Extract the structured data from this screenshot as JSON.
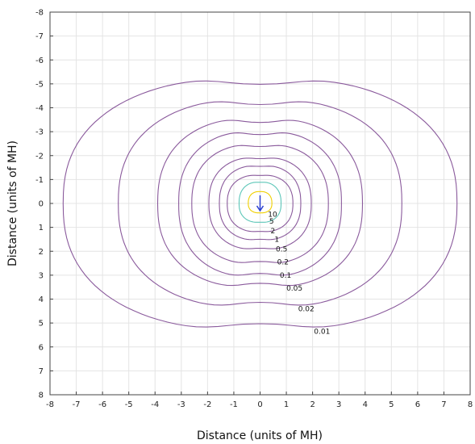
{
  "chart_data": {
    "type": "contour",
    "title": "",
    "xlabel": "Distance (units of MH)",
    "ylabel": "Distance (units of MH)",
    "xlim": [
      -8,
      8
    ],
    "ylim": [
      -8,
      8
    ],
    "y_inverted": true,
    "grid": true,
    "x_ticks": [
      "-8",
      "-7",
      "-6",
      "-5",
      "-4",
      "-3",
      "-2",
      "-1",
      "0",
      "1",
      "2",
      "3",
      "4",
      "5",
      "6",
      "7",
      "8"
    ],
    "y_ticks": [
      "-8",
      "-7",
      "-6",
      "-5",
      "-4",
      "-3",
      "-2",
      "-1",
      "0",
      "1",
      "2",
      "3",
      "4",
      "5",
      "6",
      "7",
      "8"
    ],
    "luminaire": {
      "x": 0,
      "y": 0,
      "arrow_color": "#2a3fd0",
      "arrow_direction": "down"
    },
    "contours": [
      {
        "label": "10",
        "color": "#f0d000",
        "x_left": -0.45,
        "x_right": 0.45,
        "y_top": -0.5,
        "y_bottom": 0.4,
        "label_x": 0.3,
        "label_y": 0.45
      },
      {
        "label": "5",
        "color": "#5cc6b8",
        "x_left": -0.8,
        "x_right": 0.8,
        "y_top": -0.9,
        "y_bottom": 0.8,
        "label_x": 0.35,
        "label_y": 0.75
      },
      {
        "label": "2",
        "color": "#8a5a9c",
        "x_left": -1.25,
        "x_right": 1.25,
        "y_top": -1.2,
        "y_bottom": 1.2,
        "label_x": 0.4,
        "label_y": 1.15
      },
      {
        "label": "1",
        "color": "#8a5a9c",
        "x_left": -1.55,
        "x_right": 1.55,
        "y_top": -1.6,
        "y_bottom": 1.55,
        "label_x": 0.55,
        "label_y": 1.5
      },
      {
        "label": "0.5",
        "color": "#8a5a9c",
        "x_left": -1.95,
        "x_right": 1.95,
        "y_top": -1.95,
        "y_bottom": 1.95,
        "label_x": 0.6,
        "label_y": 1.9
      },
      {
        "label": "0.2",
        "color": "#8a5a9c",
        "x_left": -2.6,
        "x_right": 2.6,
        "y_top": -2.5,
        "y_bottom": 2.55,
        "label_x": 0.65,
        "label_y": 2.45
      },
      {
        "label": "0.1",
        "color": "#8a5a9c",
        "x_left": -3.1,
        "x_right": 3.1,
        "y_top": -3.05,
        "y_bottom": 3.1,
        "label_x": 0.75,
        "label_y": 3.0
      },
      {
        "label": "0.05",
        "color": "#8a5a9c",
        "x_left": -3.9,
        "x_right": 3.9,
        "y_top": -3.6,
        "y_bottom": 3.55,
        "label_x": 1.0,
        "label_y": 3.55
      },
      {
        "label": "0.02",
        "color": "#8a5a9c",
        "x_left": -5.4,
        "x_right": 5.4,
        "y_top": -4.4,
        "y_bottom": 4.4,
        "label_x": 1.45,
        "label_y": 4.4
      },
      {
        "label": "0.01",
        "color": "#8a5a9c",
        "x_left": -7.5,
        "x_right": 7.5,
        "y_top": -5.3,
        "y_bottom": 5.35,
        "label_x": 2.05,
        "label_y": 5.35
      }
    ]
  }
}
